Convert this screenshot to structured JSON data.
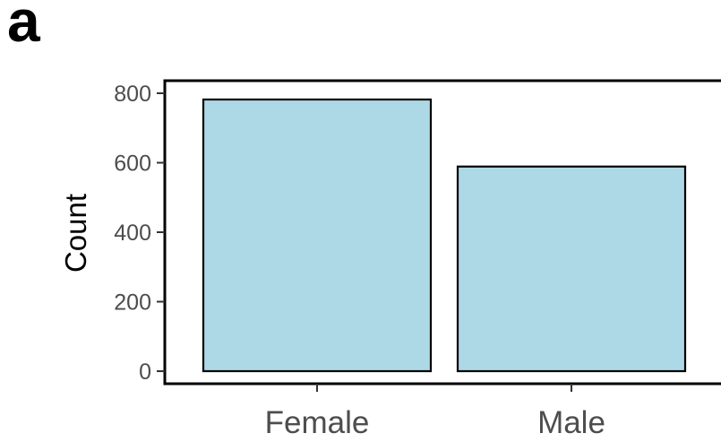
{
  "panel_label": "a",
  "chart_data": {
    "type": "bar",
    "title": "",
    "xlabel": "",
    "ylabel": "Count",
    "categories": [
      "Female",
      "Male"
    ],
    "values": [
      782,
      589
    ],
    "ylim": [
      0,
      800
    ],
    "yticks": [
      0,
      200,
      400,
      600,
      800
    ],
    "ytick_labels": [
      "0",
      "200",
      "400",
      "600",
      "800"
    ],
    "bar_fill": "#add8e6",
    "bar_stroke": "#000000",
    "grid": false,
    "legend": "none"
  }
}
